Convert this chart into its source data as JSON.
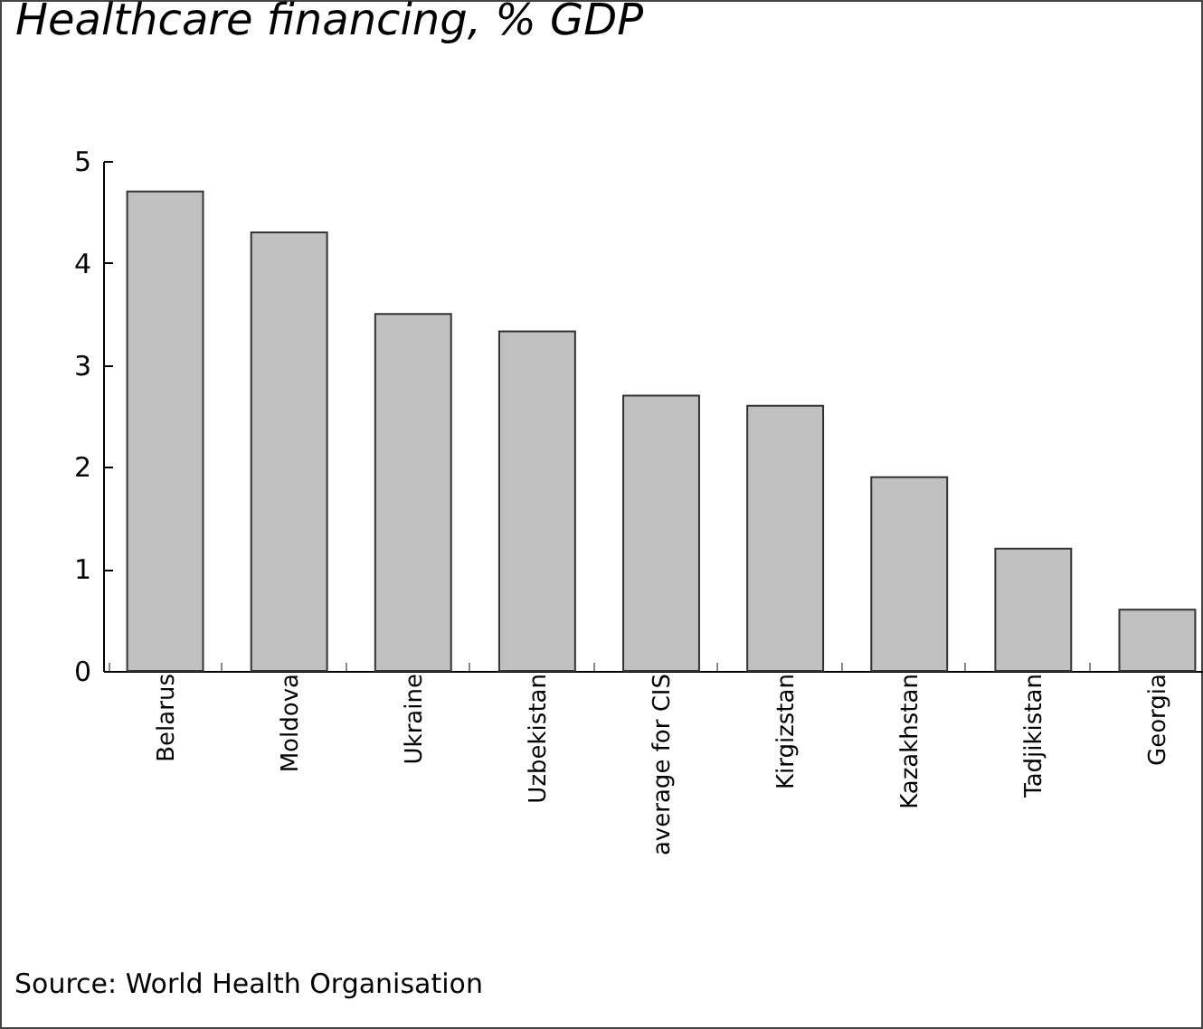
{
  "chart_data": {
    "type": "bar",
    "title": "Healthcare financing, % GDP",
    "categories": [
      "Belarus",
      "Moldova",
      "Ukraine",
      "Uzbekistan",
      "average for CIS",
      "Kirgizstan",
      "Kazakhstan",
      "Tadjikistan",
      "Georgia"
    ],
    "values": [
      4.7,
      4.3,
      3.5,
      3.33,
      2.7,
      2.6,
      1.9,
      1.2,
      0.6
    ],
    "color": "#c0c0c0",
    "ylim": [
      0,
      5
    ],
    "yticks": [
      0,
      1,
      2,
      3,
      4,
      5
    ],
    "grid": false,
    "annotations": [
      "Source: World Health Organisation"
    ]
  }
}
